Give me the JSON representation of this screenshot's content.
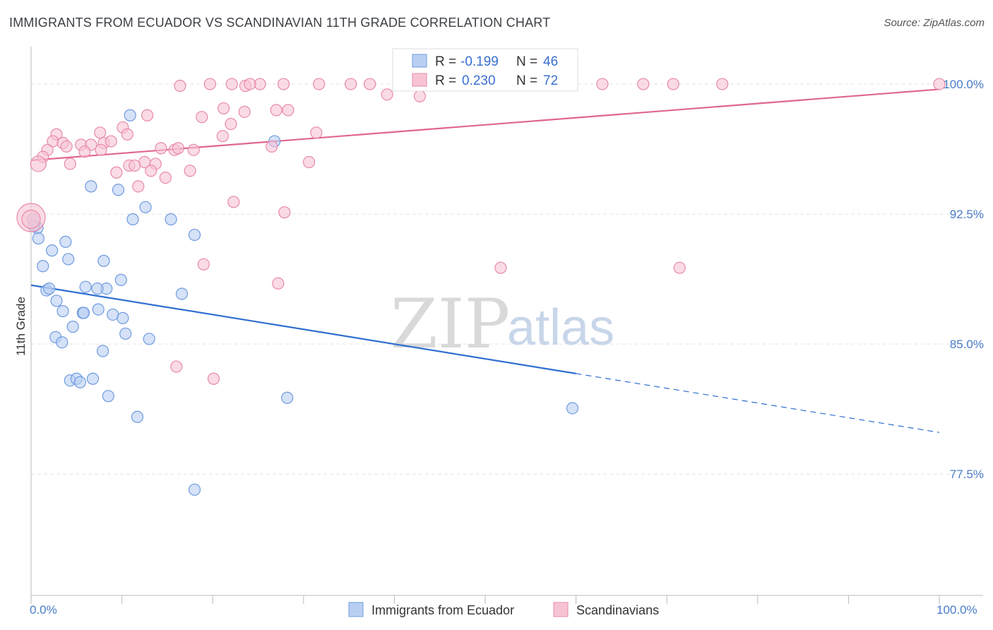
{
  "title": "IMMIGRANTS FROM ECUADOR VS SCANDINAVIAN 11TH GRADE CORRELATION CHART",
  "source": "Source: ZipAtlas.com",
  "watermark": {
    "zip": "ZIP",
    "atlas": "atlas"
  },
  "chart_data": {
    "type": "scatter",
    "ylabel": "11th Grade",
    "xlim": [
      0,
      100
    ],
    "ylim": [
      70.5,
      102
    ],
    "x_tick_labels": {
      "left": "0.0%",
      "right": "100.0%"
    },
    "y_ticks": [
      {
        "value": 100.0,
        "label": "100.0%"
      },
      {
        "value": 92.5,
        "label": "92.5%"
      },
      {
        "value": 85.0,
        "label": "85.0%"
      },
      {
        "value": 77.5,
        "label": "77.5%"
      }
    ],
    "colors": {
      "blue": "#6f9be0",
      "blue_fill": "#b9cff2",
      "blue_line": "#2f6fd0",
      "pink": "#e88aa8",
      "pink_fill": "#f7c3d3",
      "pink_line": "#e0668f"
    },
    "legend": [
      {
        "r_label": "R =",
        "r_value": "-0.199",
        "n_label": "N =",
        "n_value": "46"
      },
      {
        "r_label": "R =",
        "r_value": "0.230",
        "n_label": "N =",
        "n_value": "72"
      }
    ],
    "series": [
      {
        "name": "Immigrants from Ecuador",
        "trend": {
          "x0": 0,
          "y0": 88.4,
          "x1": 60,
          "y1": 83.3,
          "dash_x1": 100,
          "dash_y1": 79.9
        },
        "points": [
          [
            0.2,
            92.2
          ],
          [
            0.7,
            91.7
          ],
          [
            0.8,
            91.1
          ],
          [
            1.3,
            89.5
          ],
          [
            2.3,
            90.4
          ],
          [
            3.8,
            90.9
          ],
          [
            4.1,
            89.9
          ],
          [
            1.7,
            88.1
          ],
          [
            2.0,
            88.2
          ],
          [
            2.8,
            87.5
          ],
          [
            3.5,
            86.9
          ],
          [
            5.7,
            86.8
          ],
          [
            5.8,
            86.8
          ],
          [
            7.4,
            87.0
          ],
          [
            9.0,
            86.7
          ],
          [
            10.1,
            86.5
          ],
          [
            4.6,
            86.0
          ],
          [
            2.7,
            85.4
          ],
          [
            3.4,
            85.1
          ],
          [
            10.4,
            85.6
          ],
          [
            13.0,
            85.3
          ],
          [
            7.9,
            84.6
          ],
          [
            4.3,
            82.9
          ],
          [
            5.0,
            83.0
          ],
          [
            5.4,
            82.8
          ],
          [
            6.8,
            83.0
          ],
          [
            8.5,
            82.0
          ],
          [
            11.7,
            80.8
          ],
          [
            28.2,
            81.9
          ],
          [
            59.6,
            81.3
          ],
          [
            18.0,
            76.6
          ],
          [
            6.0,
            88.3
          ],
          [
            8.3,
            88.2
          ],
          [
            7.3,
            88.2
          ],
          [
            9.9,
            88.7
          ],
          [
            16.6,
            87.9
          ],
          [
            8.0,
            89.8
          ],
          [
            18.0,
            91.3
          ],
          [
            11.2,
            92.2
          ],
          [
            15.4,
            92.2
          ],
          [
            12.6,
            92.9
          ],
          [
            6.6,
            94.1
          ],
          [
            9.6,
            93.9
          ],
          [
            10.9,
            98.2
          ],
          [
            26.8,
            96.7
          ],
          [
            0.3,
            91.8
          ]
        ]
      },
      {
        "name": "Scandinavians",
        "trend": {
          "x0": 0,
          "y0": 95.6,
          "x1": 100,
          "y1": 99.7
        },
        "points": [
          [
            16.4,
            99.9
          ],
          [
            19.7,
            100.0
          ],
          [
            22.1,
            100.0
          ],
          [
            23.6,
            99.9
          ],
          [
            27.8,
            100.0
          ],
          [
            31.7,
            100.0
          ],
          [
            35.2,
            100.0
          ],
          [
            37.3,
            100.0
          ],
          [
            25.2,
            100.0
          ],
          [
            24.1,
            100.0
          ],
          [
            43.2,
            100.0
          ],
          [
            46.8,
            100.0
          ],
          [
            47.6,
            100.0
          ],
          [
            56.6,
            100.0
          ],
          [
            62.9,
            100.0
          ],
          [
            67.4,
            100.0
          ],
          [
            70.7,
            100.0
          ],
          [
            76.1,
            100.0
          ],
          [
            100.0,
            100.0
          ],
          [
            39.2,
            99.4
          ],
          [
            42.8,
            99.3
          ],
          [
            27.0,
            98.5
          ],
          [
            28.3,
            98.5
          ],
          [
            21.2,
            98.6
          ],
          [
            23.5,
            98.4
          ],
          [
            12.8,
            98.2
          ],
          [
            18.8,
            98.1
          ],
          [
            22.0,
            97.7
          ],
          [
            10.1,
            97.5
          ],
          [
            7.6,
            97.2
          ],
          [
            10.6,
            97.1
          ],
          [
            21.1,
            97.0
          ],
          [
            31.4,
            97.2
          ],
          [
            2.8,
            97.1
          ],
          [
            2.4,
            96.7
          ],
          [
            3.5,
            96.6
          ],
          [
            3.9,
            96.4
          ],
          [
            5.5,
            96.5
          ],
          [
            6.6,
            96.5
          ],
          [
            8.0,
            96.6
          ],
          [
            8.8,
            96.7
          ],
          [
            1.8,
            96.2
          ],
          [
            5.9,
            96.1
          ],
          [
            7.7,
            96.2
          ],
          [
            14.3,
            96.3
          ],
          [
            15.8,
            96.2
          ],
          [
            16.2,
            96.3
          ],
          [
            17.9,
            96.2
          ],
          [
            26.5,
            96.4
          ],
          [
            1.3,
            95.8
          ],
          [
            0.8,
            95.4
          ],
          [
            4.3,
            95.4
          ],
          [
            12.5,
            95.5
          ],
          [
            13.7,
            95.4
          ],
          [
            10.8,
            95.3
          ],
          [
            11.4,
            95.3
          ],
          [
            13.2,
            95.0
          ],
          [
            17.5,
            95.0
          ],
          [
            9.4,
            94.9
          ],
          [
            14.8,
            94.6
          ],
          [
            11.8,
            94.1
          ],
          [
            22.3,
            93.2
          ],
          [
            27.9,
            92.6
          ],
          [
            30.6,
            95.5
          ],
          [
            19.0,
            89.6
          ],
          [
            27.2,
            88.5
          ],
          [
            51.7,
            89.4
          ],
          [
            71.4,
            89.4
          ],
          [
            16.0,
            83.7
          ],
          [
            20.1,
            83.0
          ],
          [
            0.0,
            92.3
          ],
          [
            0.0,
            92.2
          ]
        ]
      }
    ]
  }
}
